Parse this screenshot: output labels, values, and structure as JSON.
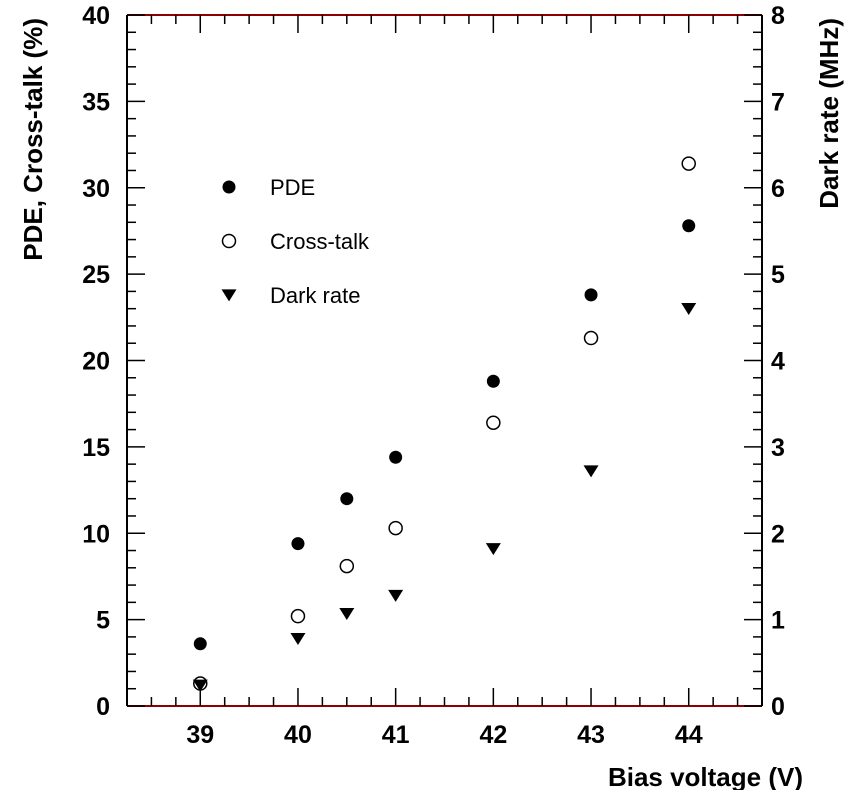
{
  "chart_data": {
    "type": "scatter",
    "xlabel": "Bias voltage (V)",
    "ylabel": "PDE, Cross-talk (%)",
    "y2label": "Dark rate (MHz)",
    "xlim": [
      38.25,
      44.75
    ],
    "ylim": [
      0,
      40
    ],
    "y2lim": [
      0,
      8
    ],
    "x_ticks": [
      39,
      40,
      41,
      42,
      43,
      44
    ],
    "y_ticks": [
      0,
      5,
      10,
      15,
      20,
      25,
      30,
      35,
      40
    ],
    "y2_ticks": [
      0,
      1,
      2,
      3,
      4,
      5,
      6,
      7,
      8
    ],
    "grid": false,
    "legend_position": "upper-left",
    "series": [
      {
        "name": "PDE",
        "marker": "filled-circle",
        "axis": "left",
        "x": [
          39,
          40,
          40.5,
          41,
          42,
          43,
          44
        ],
        "y": [
          3.6,
          9.4,
          12.0,
          14.4,
          18.8,
          23.8,
          27.8
        ]
      },
      {
        "name": "Cross-talk",
        "marker": "open-circle",
        "axis": "left",
        "x": [
          39,
          40,
          40.5,
          41,
          42,
          43,
          44
        ],
        "y": [
          1.3,
          5.2,
          8.1,
          10.3,
          16.4,
          21.3,
          31.4
        ]
      },
      {
        "name": "Dark rate",
        "marker": "filled-triangle-down",
        "axis": "right",
        "x": [
          39,
          40,
          40.5,
          41,
          42,
          43,
          44
        ],
        "y": [
          0.24,
          0.78,
          1.07,
          1.28,
          1.82,
          2.72,
          4.6
        ]
      }
    ]
  }
}
